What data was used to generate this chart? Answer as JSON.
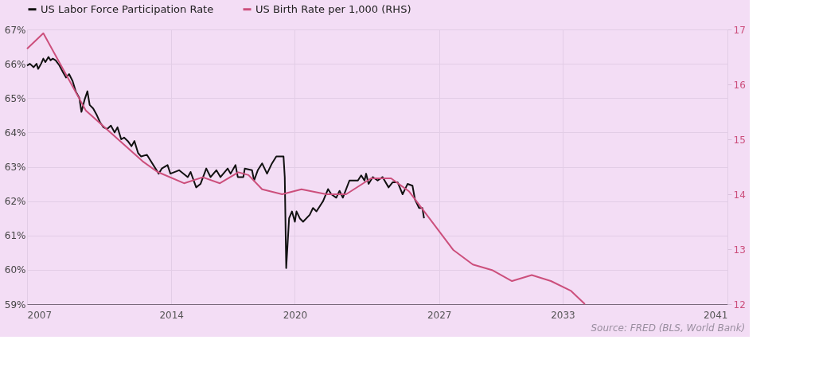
{
  "chart_data": {
    "type": "line",
    "annotations": [
      "Source: FRED (BLS, World Bank)"
    ],
    "xlim": [
      2007,
      2041
    ],
    "xticks": [
      2007,
      2014,
      2020,
      2027,
      2033,
      2041
    ],
    "ylim": [
      59,
      67
    ],
    "yticks": [
      {
        "value": 59,
        "label": "59%"
      },
      {
        "value": 60,
        "label": "60%"
      },
      {
        "value": 61,
        "label": "61%"
      },
      {
        "value": 62,
        "label": "62%"
      },
      {
        "value": 63,
        "label": "63%"
      },
      {
        "value": 64,
        "label": "64%"
      },
      {
        "value": 65,
        "label": "65%"
      },
      {
        "value": 66,
        "label": "66%"
      },
      {
        "value": 67,
        "label": "67%"
      }
    ],
    "y2lim": [
      12,
      17
    ],
    "y2ticks": [
      12,
      13,
      14,
      15,
      16,
      17
    ],
    "grid": true,
    "legend": "top left",
    "line_style": "solid",
    "series": [
      {
        "name": "US Labor Force Participation Rate",
        "color": "#111111",
        "x": [
          2007.0,
          2007.14,
          2007.32,
          2007.46,
          2007.54,
          2007.68,
          2007.79,
          2007.89,
          2008.04,
          2008.14,
          2008.25,
          2008.39,
          2008.57,
          2008.75,
          2008.89,
          2009.04,
          2009.21,
          2009.36,
          2009.54,
          2009.64,
          2009.79,
          2009.93,
          2010.04,
          2010.21,
          2010.39,
          2010.54,
          2010.71,
          2010.89,
          2011.07,
          2011.25,
          2011.39,
          2011.57,
          2011.71,
          2011.89,
          2012.07,
          2012.21,
          2012.39,
          2012.54,
          2012.82,
          2013.39,
          2013.54,
          2013.82,
          2013.96,
          2014.38,
          2014.8,
          2014.94,
          2015.21,
          2015.42,
          2015.7,
          2015.91,
          2016.19,
          2016.39,
          2016.74,
          2016.88,
          2017.12,
          2017.23,
          2017.5,
          2017.57,
          2017.92,
          2018.02,
          2018.2,
          2018.41,
          2018.65,
          2018.89,
          2019.1,
          2019.45,
          2019.51,
          2019.58,
          2019.72,
          2019.86,
          2020.0,
          2020.08,
          2020.24,
          2020.4,
          2020.72,
          2020.88,
          2021.05,
          2021.37,
          2021.61,
          2021.77,
          2022.01,
          2022.17,
          2022.33,
          2022.65,
          2023.06,
          2023.22,
          2023.38,
          2023.46,
          2023.58,
          2023.78,
          2024.02,
          2024.26,
          2024.55,
          2024.75,
          2024.99,
          2025.23,
          2025.47,
          2025.71,
          2025.83,
          2026.03,
          2026.19,
          2026.27
        ],
        "values": [
          65.95,
          66.0,
          65.9,
          66.0,
          65.85,
          66.0,
          66.15,
          66.05,
          66.2,
          66.1,
          66.15,
          66.1,
          65.95,
          65.75,
          65.6,
          65.7,
          65.5,
          65.2,
          65.0,
          64.6,
          64.95,
          65.2,
          64.8,
          64.7,
          64.5,
          64.3,
          64.15,
          64.1,
          64.2,
          64.0,
          64.15,
          63.8,
          63.85,
          63.75,
          63.6,
          63.75,
          63.4,
          63.3,
          63.35,
          62.8,
          62.95,
          63.05,
          62.8,
          62.9,
          62.7,
          62.85,
          62.4,
          62.5,
          62.95,
          62.7,
          62.9,
          62.7,
          62.95,
          62.8,
          63.05,
          62.7,
          62.7,
          62.95,
          62.9,
          62.6,
          62.9,
          63.1,
          62.8,
          63.1,
          63.3,
          63.3,
          62.7,
          60.05,
          61.5,
          61.7,
          61.4,
          61.7,
          61.5,
          61.4,
          61.6,
          61.8,
          61.7,
          62.0,
          62.35,
          62.2,
          62.1,
          62.3,
          62.1,
          62.6,
          62.6,
          62.75,
          62.6,
          62.8,
          62.5,
          62.7,
          62.6,
          62.7,
          62.4,
          62.55,
          62.55,
          62.2,
          62.5,
          62.45,
          62.05,
          61.8,
          61.8,
          61.5
        ]
      },
      {
        "name": "US Birth Rate per 1,000 (RHS)",
        "color": "#cc4f7c",
        "axis": "y2",
        "x": [
          2007.0,
          2007.79,
          2009.86,
          2012.61,
          2013.32,
          2014.62,
          2015.53,
          2016.36,
          2017.26,
          2017.75,
          2018.41,
          2019.38,
          2020.32,
          2021.53,
          2022.49,
          2023.7,
          2024.67,
          2025.55,
          2027.68,
          2028.64,
          2029.57,
          2030.54,
          2031.5,
          2032.43,
          2033.41,
          2034.08
        ],
        "values": [
          16.65,
          16.93,
          15.52,
          14.6,
          14.41,
          14.2,
          14.31,
          14.2,
          14.4,
          14.35,
          14.09,
          14.0,
          14.09,
          14.0,
          14.0,
          14.29,
          14.29,
          14.05,
          12.99,
          12.72,
          12.62,
          12.42,
          12.53,
          12.42,
          12.24,
          12.0
        ]
      }
    ]
  }
}
